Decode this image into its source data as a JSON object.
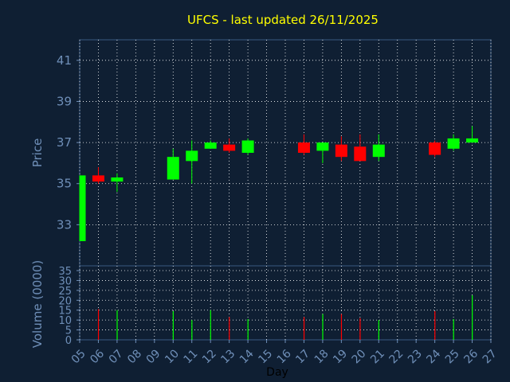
{
  "chart_data": {
    "type": "candlestick",
    "title": "UFCS - last updated 26/11/2025",
    "xlabel": "Day",
    "ylabel": "Price",
    "volume_label": "Volume (0000)",
    "x_ticks": [
      "05",
      "06",
      "07",
      "08",
      "09",
      "10",
      "11",
      "12",
      "13",
      "14",
      "15",
      "16",
      "17",
      "18",
      "19",
      "20",
      "21",
      "22",
      "23",
      "24",
      "25",
      "26",
      "27"
    ],
    "price_ticks": [
      33,
      35,
      37,
      39,
      41
    ],
    "price_range": [
      31.0,
      42.0
    ],
    "volume_ticks": [
      0,
      5,
      10,
      15,
      20,
      25,
      30,
      35
    ],
    "volume_range": [
      0,
      35
    ],
    "grid": true,
    "colors": {
      "up": "#00ff00",
      "down": "#ff0000",
      "title": "#ffff00",
      "axis": "#6f8fb8",
      "grid": "#ffffff"
    },
    "candles": [
      {
        "day": "05",
        "open": 32.2,
        "close": 35.4,
        "high": 35.4,
        "low": 32.2,
        "volume": 0
      },
      {
        "day": "06",
        "open": 35.4,
        "close": 35.1,
        "high": 35.8,
        "low": 35.0,
        "volume": 15.5
      },
      {
        "day": "07",
        "open": 35.1,
        "close": 35.3,
        "high": 35.5,
        "low": 34.6,
        "volume": 15.0
      },
      {
        "day": "10",
        "open": 35.2,
        "close": 36.3,
        "high": 36.7,
        "low": 35.2,
        "volume": 14.5
      },
      {
        "day": "11",
        "open": 36.1,
        "close": 36.6,
        "high": 37.1,
        "low": 35.0,
        "volume": 10.0
      },
      {
        "day": "12",
        "open": 36.7,
        "close": 37.0,
        "high": 37.1,
        "low": 36.7,
        "volume": 15.0
      },
      {
        "day": "13",
        "open": 36.9,
        "close": 36.6,
        "high": 37.2,
        "low": 36.5,
        "volume": 11.5
      },
      {
        "day": "14",
        "open": 36.5,
        "close": 37.1,
        "high": 37.2,
        "low": 36.4,
        "volume": 10.5
      },
      {
        "day": "17",
        "open": 37.0,
        "close": 36.5,
        "high": 37.4,
        "low": 36.4,
        "volume": 11.5
      },
      {
        "day": "18",
        "open": 36.6,
        "close": 37.0,
        "high": 37.0,
        "low": 36.0,
        "volume": 13.0
      },
      {
        "day": "19",
        "open": 36.9,
        "close": 36.3,
        "high": 37.3,
        "low": 36.1,
        "volume": 13.0
      },
      {
        "day": "20",
        "open": 36.8,
        "close": 36.1,
        "high": 37.4,
        "low": 36.1,
        "volume": 11.0
      },
      {
        "day": "21",
        "open": 36.3,
        "close": 36.9,
        "high": 37.4,
        "low": 36.1,
        "volume": 10.0
      },
      {
        "day": "24",
        "open": 37.0,
        "close": 36.4,
        "high": 37.1,
        "low": 36.3,
        "volume": 14.5
      },
      {
        "day": "25",
        "open": 36.7,
        "close": 37.2,
        "high": 37.4,
        "low": 36.6,
        "volume": 10.5
      },
      {
        "day": "26",
        "open": 37.0,
        "close": 37.2,
        "high": 37.8,
        "low": 37.0,
        "volume": 22.5
      }
    ]
  }
}
